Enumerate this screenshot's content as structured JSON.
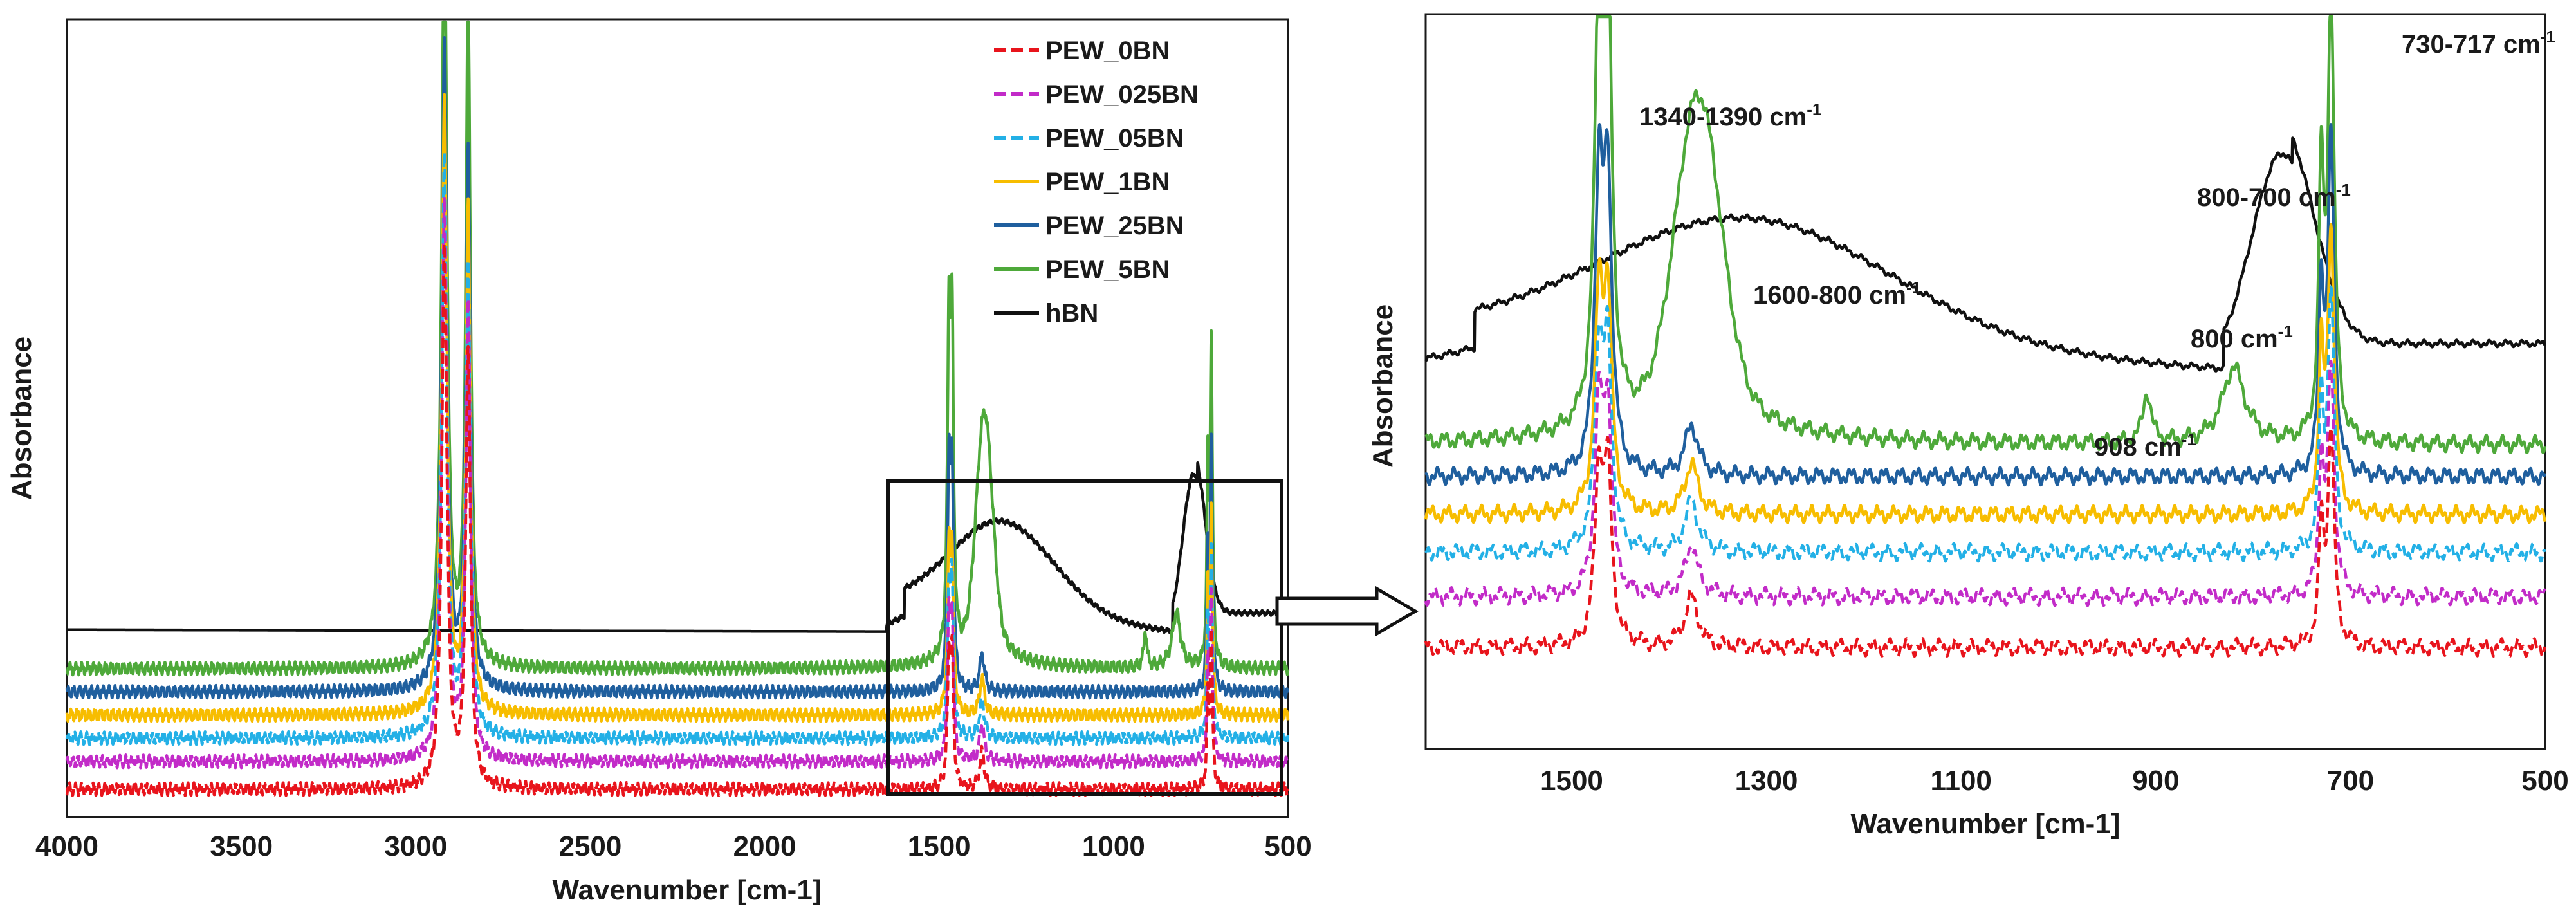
{
  "colors": {
    "PEW_0BN": "#e8141c",
    "PEW_025BN": "#c22bc8",
    "PEW_05BN": "#23b0e6",
    "PEW_1BN": "#f7bd00",
    "PEW_25BN": "#1f5f9e",
    "PEW_5BN": "#4ea93a",
    "hBN": "#111111"
  },
  "chart_data": [
    {
      "id": "full-spectrum",
      "type": "line",
      "title": "",
      "xlabel": "Wavenumber [cm-1]",
      "ylabel": "Absorbance",
      "xlim": [
        4000,
        500
      ],
      "xticks": [
        "4000",
        "3500",
        "3000",
        "2500",
        "2000",
        "1500",
        "1000",
        "500"
      ],
      "xtick_values": [
        4000,
        3500,
        3000,
        2500,
        2000,
        1500,
        1000,
        500
      ],
      "ylim": [
        0,
        1.0
      ],
      "legend_position": "top-right",
      "zoom_region": [
        1640,
        500
      ],
      "series": [
        {
          "name": "PEW_0BN",
          "style": "dashed",
          "baseline": 0.01,
          "peaks": [
            [
              2918,
              0.58
            ],
            [
              2850,
              0.47
            ],
            [
              1472,
              0.13
            ],
            [
              1463,
              0.13
            ],
            [
              1377,
              0.04
            ],
            [
              720,
              0.17
            ],
            [
              730,
              0.09
            ]
          ]
        },
        {
          "name": "PEW_025BN",
          "style": "dashed",
          "baseline": 0.04,
          "peaks": [
            [
              2918,
              0.6
            ],
            [
              2850,
              0.49
            ],
            [
              1472,
              0.14
            ],
            [
              1463,
              0.14
            ],
            [
              1377,
              0.04
            ],
            [
              720,
              0.18
            ],
            [
              730,
              0.1
            ]
          ]
        },
        {
          "name": "PEW_05BN",
          "style": "dashed",
          "baseline": 0.065,
          "peaks": [
            [
              2918,
              0.63
            ],
            [
              2850,
              0.51
            ],
            [
              1472,
              0.15
            ],
            [
              1463,
              0.15
            ],
            [
              1377,
              0.04
            ],
            [
              720,
              0.2
            ],
            [
              730,
              0.11
            ]
          ]
        },
        {
          "name": "PEW_1BN",
          "style": "solid",
          "baseline": 0.09,
          "peaks": [
            [
              2918,
              0.66
            ],
            [
              2850,
              0.54
            ],
            [
              1472,
              0.16
            ],
            [
              1463,
              0.16
            ],
            [
              1377,
              0.04
            ],
            [
              720,
              0.22
            ],
            [
              730,
              0.12
            ]
          ]
        },
        {
          "name": "PEW_25BN",
          "style": "solid",
          "baseline": 0.115,
          "peaks": [
            [
              2918,
              0.7
            ],
            [
              2850,
              0.58
            ],
            [
              1472,
              0.22
            ],
            [
              1463,
              0.22
            ],
            [
              1377,
              0.04
            ],
            [
              720,
              0.26
            ],
            [
              730,
              0.14
            ]
          ]
        },
        {
          "name": "PEW_5BN",
          "style": "solid",
          "baseline": 0.14,
          "peaks": [
            [
              2918,
              0.83
            ],
            [
              2850,
              0.71
            ],
            [
              1472,
              0.33
            ],
            [
              1463,
              0.33
            ],
            [
              1370,
              0.22
            ],
            [
              909,
              0.04
            ],
            [
              820,
              0.06
            ],
            [
              720,
              0.35
            ],
            [
              730,
              0.2
            ]
          ]
        },
        {
          "name": "hBN",
          "style": "solid",
          "baseline": 0.18,
          "peaks": [
            [
              1320,
              0.1
            ],
            [
              770,
              0.17
            ]
          ]
        }
      ]
    },
    {
      "id": "zoomed-spectrum",
      "type": "line",
      "title": "",
      "xlabel": "Wavenumber [cm-1]",
      "ylabel": "Absorbance",
      "xlim": [
        1650,
        500
      ],
      "xticks": [
        "1500",
        "1300",
        "1100",
        "900",
        "700",
        "500"
      ],
      "xtick_values": [
        1500,
        1300,
        1100,
        900,
        700,
        500
      ],
      "ylim": [
        0,
        1.0
      ],
      "annotations": [
        {
          "base": "1340-1390 cm",
          "sup": "-1",
          "x": 1365,
          "y": 0.93
        },
        {
          "base": "1600-800 cm",
          "sup": "-1",
          "x": 1280,
          "y": 0.64
        },
        {
          "base": "908 cm",
          "sup": "-1",
          "x": 908,
          "y": 0.38
        },
        {
          "base": "800-700 cm",
          "sup": "-1",
          "x": 760,
          "y": 0.8
        },
        {
          "base": "800 cm",
          "sup": "-1",
          "x": 800,
          "y": 0.57
        },
        {
          "base": "730-717 cm",
          "sup": "-1",
          "x": 700,
          "y": 1.01
        }
      ]
    }
  ]
}
